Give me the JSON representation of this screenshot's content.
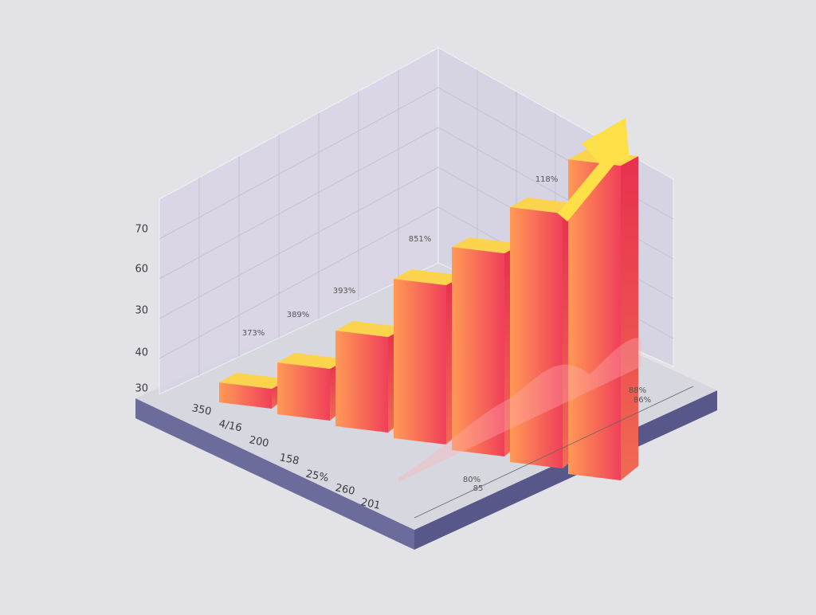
{
  "y_axis_labels": [
    "70",
    "60",
    "30",
    "40",
    "30"
  ],
  "bar_labels": [
    "373%",
    "389%",
    "393%",
    "851%",
    "118%"
  ],
  "x_axis_labels": [
    "350",
    "4/16",
    "200",
    "158",
    "25%",
    "260",
    "201"
  ],
  "side_labels": [
    "88%",
    "86%",
    "80%",
    "85"
  ]
}
